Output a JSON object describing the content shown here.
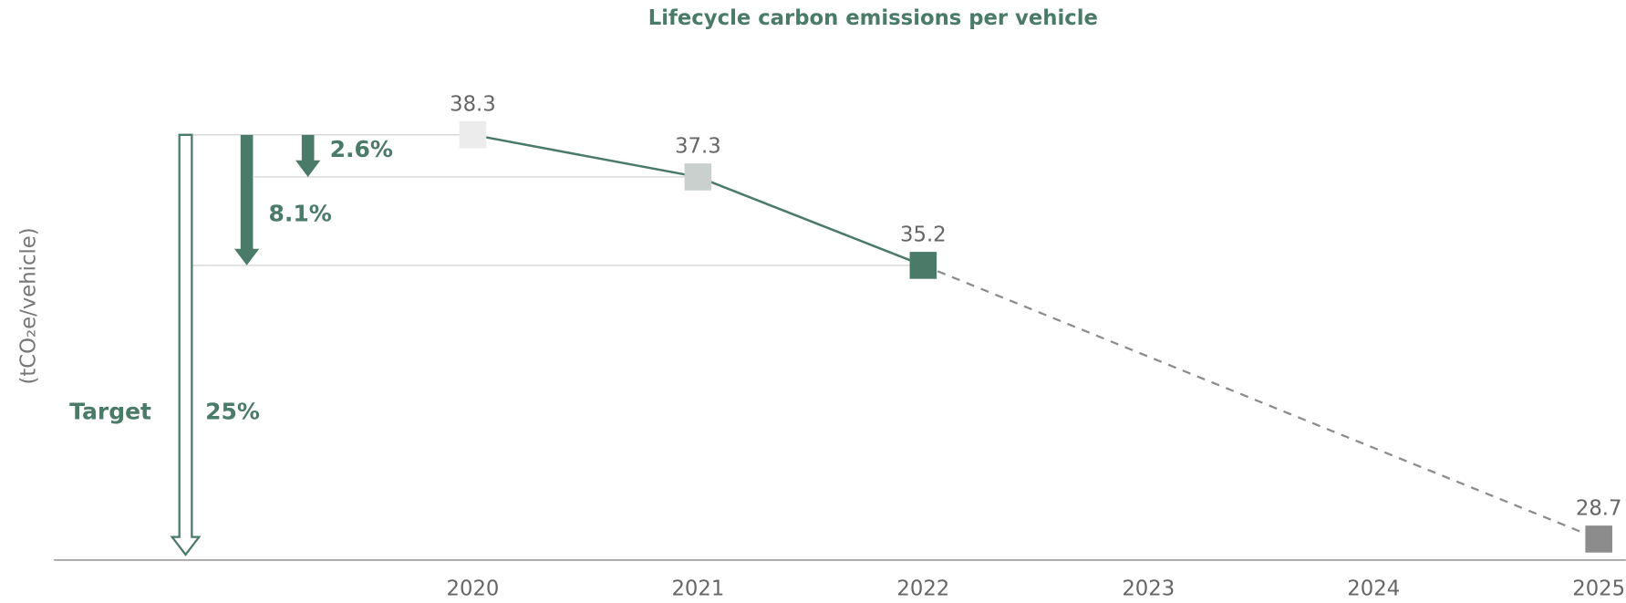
{
  "chart_data": {
    "type": "line",
    "title": "Lifecycle carbon emissions per vehicle",
    "y_label": "(tCO₂e/vehicle)",
    "x": [
      2020,
      2021,
      2022,
      2023,
      2024,
      2025
    ],
    "xlim": [
      2018.14,
      2025.12
    ],
    "xticks": [
      2020,
      2021,
      2022,
      2023,
      2024,
      2025
    ],
    "ylim": [
      28.2,
      40
    ],
    "series": [
      {
        "color": "#4a7a68",
        "values": [
          38.3,
          37.3,
          35.2,
          null,
          null,
          28.7
        ],
        "marker_colors": [
          "#ececec",
          "#c9d0cd",
          "#4a7a68",
          null,
          null,
          "#8c8c8c"
        ],
        "gap_style": "dashed",
        "gap_color": "#8c8c8c"
      }
    ],
    "annotations": [
      "2.6%",
      "8.1%",
      "25%"
    ],
    "target_label": "Target"
  }
}
